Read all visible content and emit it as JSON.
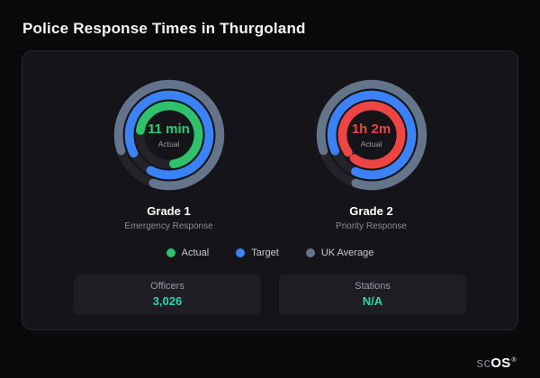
{
  "page": {
    "title": "Police Response Times in Thurgoland"
  },
  "chart_data": [
    {
      "type": "radial-gauge",
      "title": "Grade 1",
      "subtitle": "Emergency Response",
      "value_label": "11 min",
      "center_caption": "Actual",
      "value_color": "#2ecc71",
      "rings": [
        {
          "name": "UK Average",
          "pct": 85,
          "color": "#64748b"
        },
        {
          "name": "Target",
          "pct": 90,
          "color": "#3b82f6"
        },
        {
          "name": "Actual",
          "pct": 70,
          "color": "#2dc26b"
        }
      ]
    },
    {
      "type": "radial-gauge",
      "title": "Grade 2",
      "subtitle": "Priority Response",
      "value_label": "1h 2m",
      "center_caption": "Actual",
      "value_color": "#ef4444",
      "rings": [
        {
          "name": "UK Average",
          "pct": 85,
          "color": "#64748b"
        },
        {
          "name": "Target",
          "pct": 88,
          "color": "#3b82f6"
        },
        {
          "name": "Actual",
          "pct": 95,
          "color": "#ef4444"
        }
      ]
    }
  ],
  "legend": [
    {
      "label": "Actual",
      "color": "#2dc26b"
    },
    {
      "label": "Target",
      "color": "#3b82f6"
    },
    {
      "label": "UK Average",
      "color": "#64748b"
    }
  ],
  "stats": [
    {
      "label": "Officers",
      "value": "3,026"
    },
    {
      "label": "Stations",
      "value": "N/A"
    }
  ],
  "brand": {
    "prefix": "sc",
    "suffix": "OS",
    "reg": "®"
  }
}
